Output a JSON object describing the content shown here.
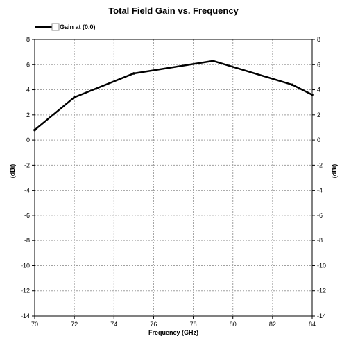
{
  "chart_data": {
    "type": "line",
    "title": "Total Field Gain vs. Frequency",
    "xlabel": "Frequency (GHz)",
    "ylabel": "(dBi)",
    "ylabel_right": "(dBi)",
    "xlim": [
      70,
      84
    ],
    "ylim": [
      -14,
      8
    ],
    "x_ticks": [
      70,
      72,
      74,
      76,
      78,
      80,
      82,
      84
    ],
    "y_ticks": [
      8,
      6,
      4,
      2,
      0,
      -2,
      -4,
      -6,
      -8,
      -10,
      -12,
      -14
    ],
    "grid": true,
    "legend_position": "top-left",
    "series": [
      {
        "name": "Gain at (0,0)",
        "color": "#000000",
        "x": [
          70,
          72,
          75,
          79,
          83,
          84
        ],
        "y": [
          0.8,
          3.4,
          5.3,
          6.3,
          4.4,
          3.6
        ]
      }
    ]
  }
}
